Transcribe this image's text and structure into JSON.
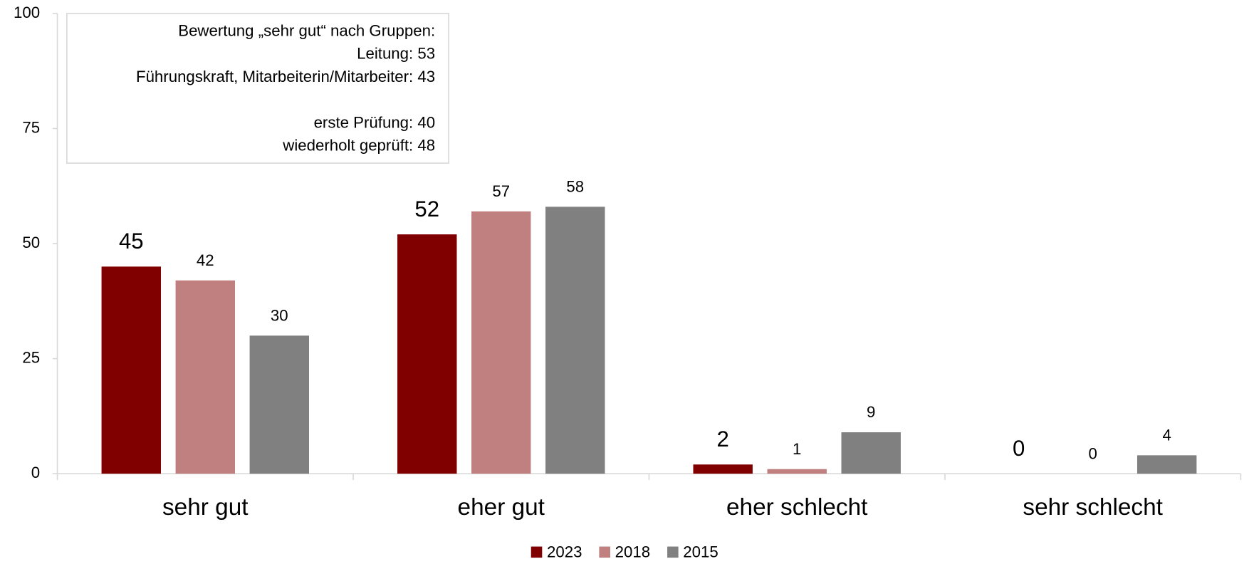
{
  "chart_data": {
    "type": "bar",
    "categories": [
      "sehr gut",
      "eher gut",
      "eher schlecht",
      "sehr schlecht"
    ],
    "series": [
      {
        "name": "2023",
        "color": "#800000",
        "values": [
          45,
          52,
          2,
          0
        ]
      },
      {
        "name": "2018",
        "color": "#c08080",
        "values": [
          42,
          57,
          1,
          0
        ]
      },
      {
        "name": "2015",
        "color": "#808080",
        "values": [
          30,
          58,
          9,
          4
        ]
      }
    ],
    "ylim": [
      0,
      100
    ],
    "yticks": [
      0,
      25,
      50,
      75,
      100
    ],
    "grid": false,
    "legend": "bottom",
    "annotation": [
      [
        "Bewertung „sehr gut“ nach Gruppen:",
        "Leitung: 53",
        "Führungskraft, Mitarbeiterin/Mitarbeiter: 43"
      ],
      [
        "erste Prüfung: 40",
        "wiederholt geprüft: 48"
      ]
    ]
  }
}
